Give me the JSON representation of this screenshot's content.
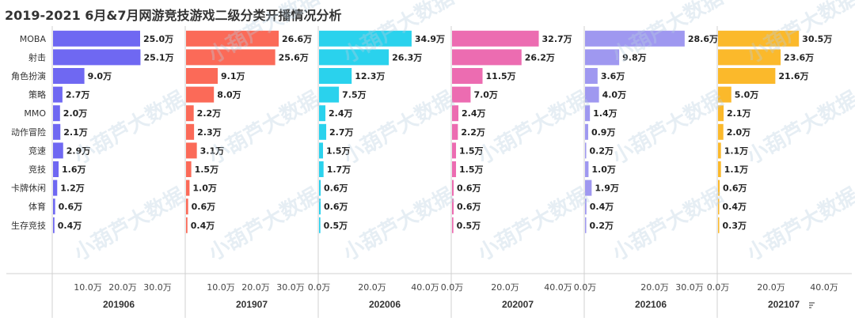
{
  "title": "2019-2021 6月&7月网游竞技游戏二级分类开播情况分析",
  "watermark": "小葫芦大数据",
  "chart_data": {
    "type": "bar",
    "orientation": "horizontal",
    "categories": [
      "MOBA",
      "射击",
      "角色扮演",
      "策略",
      "MMO",
      "动作冒险",
      "竞速",
      "竞技",
      "卡牌休闲",
      "体育",
      "生存竞技"
    ],
    "value_suffix": "万",
    "panels": [
      {
        "name": "201906",
        "color": "#6f68f2",
        "xlim": [
          0,
          35
        ],
        "ticks": [
          "10.0万",
          "20.0万",
          "30.0万"
        ],
        "tick_values": [
          10,
          20,
          30
        ],
        "values": [
          25.0,
          25.1,
          9.0,
          2.7,
          2.0,
          2.1,
          2.9,
          1.6,
          1.2,
          0.6,
          0.4
        ],
        "labels": [
          "25.0万",
          "25.1万",
          "9.0万",
          "2.7万",
          "2.0万",
          "2.1万",
          "2.9万",
          "1.6万",
          "1.2万",
          "0.6万",
          "0.4万"
        ]
      },
      {
        "name": "201907",
        "color": "#fb6a58",
        "xlim": [
          0,
          35
        ],
        "ticks": [
          "10.0万",
          "20.0万",
          "30.0万"
        ],
        "tick_values": [
          10,
          20,
          30
        ],
        "values": [
          26.6,
          25.6,
          9.1,
          8.0,
          2.2,
          2.3,
          3.1,
          1.5,
          1.0,
          0.6,
          0.4
        ],
        "labels": [
          "26.6万",
          "25.6万",
          "9.1万",
          "8.0万",
          "2.2万",
          "2.3万",
          "3.1万",
          "1.5万",
          "1.0万",
          "0.6万",
          "0.4万"
        ]
      },
      {
        "name": "202006",
        "color": "#2ad2ed",
        "xlim": [
          0,
          45
        ],
        "ticks": [
          "0.0万",
          "20.0万",
          "40.0万"
        ],
        "tick_values": [
          0,
          20,
          40
        ],
        "values": [
          34.9,
          26.3,
          12.3,
          7.5,
          2.4,
          2.7,
          1.5,
          1.7,
          0.6,
          0.6,
          0.5
        ],
        "labels": [
          "34.9万",
          "26.3万",
          "12.3万",
          "7.5万",
          "2.4万",
          "2.7万",
          "1.5万",
          "1.7万",
          "0.6万",
          "0.6万",
          "0.5万"
        ]
      },
      {
        "name": "202007",
        "color": "#ec6cb1",
        "xlim": [
          0,
          45
        ],
        "ticks": [
          "0.0万",
          "20.0万",
          "40.0万"
        ],
        "tick_values": [
          0,
          20,
          40
        ],
        "values": [
          32.7,
          26.2,
          11.5,
          7.0,
          2.4,
          2.2,
          1.5,
          1.5,
          0.6,
          0.6,
          0.5
        ],
        "labels": [
          "32.7万",
          "26.2万",
          "11.5万",
          "7.0万",
          "2.4万",
          "2.2万",
          "1.5万",
          "1.5万",
          "0.6万",
          "0.6万",
          "0.5万"
        ]
      },
      {
        "name": "202106",
        "color": "#9f98f0",
        "xlim": [
          0,
          35
        ],
        "ticks": [
          "0.0万",
          "20.0万",
          "30.0万"
        ],
        "tick_values": [
          0,
          20,
          30
        ],
        "values": [
          28.6,
          9.8,
          3.6,
          4.0,
          1.4,
          0.9,
          0.2,
          1.0,
          1.9,
          0.4,
          0.2
        ],
        "labels": [
          "28.6万",
          "9.8万",
          "3.6万",
          "4.0万",
          "1.4万",
          "0.9万",
          "0.2万",
          "1.0万",
          "1.9万",
          "0.4万",
          "0.2万"
        ]
      },
      {
        "name": "202107",
        "color": "#fbb92b",
        "xlim": [
          0,
          45
        ],
        "ticks": [
          "0.0万",
          "20.0万",
          "40.0万"
        ],
        "tick_values": [
          0,
          20,
          40
        ],
        "values": [
          30.5,
          23.6,
          21.6,
          5.0,
          2.1,
          2.0,
          1.1,
          1.1,
          0.6,
          0.4,
          0.3
        ],
        "labels": [
          "30.5万",
          "23.6万",
          "21.6万",
          "5.0万",
          "2.1万",
          "2.0万",
          "1.1万",
          "1.1万",
          "0.6万",
          "0.4万",
          "0.3万"
        ]
      }
    ]
  }
}
